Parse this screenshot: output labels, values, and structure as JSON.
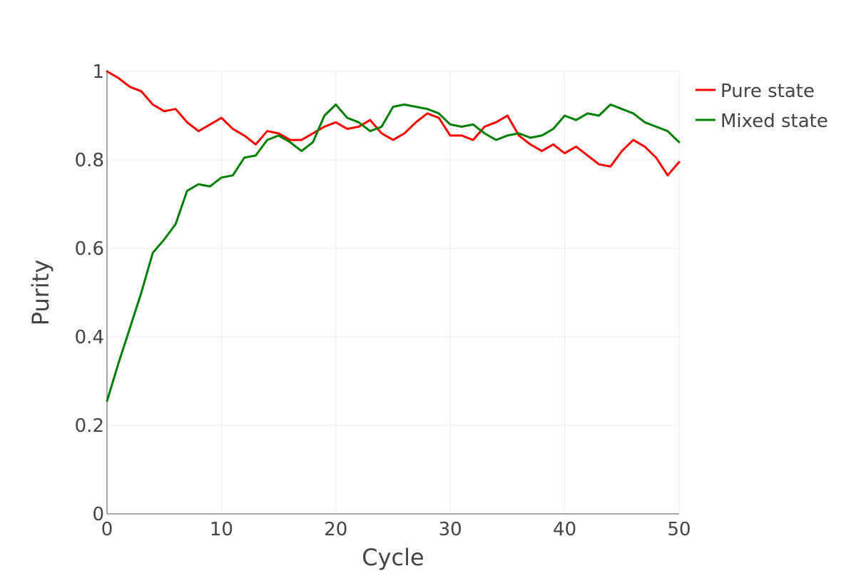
{
  "chart_data": {
    "type": "line",
    "xlabel": "Cycle",
    "ylabel": "Purity",
    "xlim": [
      0,
      50
    ],
    "ylim": [
      0,
      1
    ],
    "xticks": [
      0,
      10,
      20,
      30,
      40,
      50
    ],
    "yticks": [
      0,
      0.2,
      0.4,
      0.6,
      0.8,
      1
    ],
    "ytick_labels": [
      "0",
      "0.2",
      "0.4",
      "0.6",
      "0.8",
      "1"
    ],
    "xtick_labels": [
      "0",
      "10",
      "20",
      "30",
      "40",
      "50"
    ],
    "grid": true,
    "legend_position": "top-right",
    "series": [
      {
        "name": "Pure state",
        "color": "#ff0000",
        "points": [
          [
            0,
            1.0
          ],
          [
            1,
            0.985
          ],
          [
            2,
            0.965
          ],
          [
            3,
            0.955
          ],
          [
            4,
            0.925
          ],
          [
            5,
            0.91
          ],
          [
            6,
            0.915
          ],
          [
            7,
            0.885
          ],
          [
            8,
            0.865
          ],
          [
            9,
            0.88
          ],
          [
            10,
            0.895
          ],
          [
            11,
            0.87
          ],
          [
            12,
            0.855
          ],
          [
            13,
            0.835
          ],
          [
            14,
            0.865
          ],
          [
            15,
            0.86
          ],
          [
            16,
            0.845
          ],
          [
            17,
            0.845
          ],
          [
            18,
            0.86
          ],
          [
            19,
            0.875
          ],
          [
            20,
            0.885
          ],
          [
            21,
            0.87
          ],
          [
            22,
            0.875
          ],
          [
            23,
            0.89
          ],
          [
            24,
            0.86
          ],
          [
            25,
            0.845
          ],
          [
            26,
            0.86
          ],
          [
            27,
            0.885
          ],
          [
            28,
            0.905
          ],
          [
            29,
            0.895
          ],
          [
            30,
            0.855
          ],
          [
            31,
            0.855
          ],
          [
            32,
            0.845
          ],
          [
            33,
            0.875
          ],
          [
            34,
            0.885
          ],
          [
            35,
            0.9
          ],
          [
            36,
            0.855
          ],
          [
            37,
            0.835
          ],
          [
            38,
            0.82
          ],
          [
            39,
            0.835
          ],
          [
            40,
            0.815
          ],
          [
            41,
            0.83
          ],
          [
            42,
            0.81
          ],
          [
            43,
            0.79
          ],
          [
            44,
            0.785
          ],
          [
            45,
            0.82
          ],
          [
            46,
            0.845
          ],
          [
            47,
            0.83
          ],
          [
            48,
            0.805
          ],
          [
            49,
            0.765
          ],
          [
            50,
            0.795
          ]
        ]
      },
      {
        "name": "Mixed state",
        "color": "#008000",
        "points": [
          [
            0,
            0.255
          ],
          [
            1,
            0.34
          ],
          [
            2,
            0.42
          ],
          [
            3,
            0.5
          ],
          [
            4,
            0.59
          ],
          [
            5,
            0.62
          ],
          [
            6,
            0.655
          ],
          [
            7,
            0.73
          ],
          [
            8,
            0.745
          ],
          [
            9,
            0.74
          ],
          [
            10,
            0.76
          ],
          [
            11,
            0.765
          ],
          [
            12,
            0.805
          ],
          [
            13,
            0.81
          ],
          [
            14,
            0.845
          ],
          [
            15,
            0.855
          ],
          [
            16,
            0.84
          ],
          [
            17,
            0.82
          ],
          [
            18,
            0.84
          ],
          [
            19,
            0.9
          ],
          [
            20,
            0.925
          ],
          [
            21,
            0.895
          ],
          [
            22,
            0.885
          ],
          [
            23,
            0.865
          ],
          [
            24,
            0.875
          ],
          [
            25,
            0.92
          ],
          [
            26,
            0.925
          ],
          [
            27,
            0.92
          ],
          [
            28,
            0.915
          ],
          [
            29,
            0.905
          ],
          [
            30,
            0.88
          ],
          [
            31,
            0.875
          ],
          [
            32,
            0.88
          ],
          [
            33,
            0.86
          ],
          [
            34,
            0.845
          ],
          [
            35,
            0.855
          ],
          [
            36,
            0.86
          ],
          [
            37,
            0.85
          ],
          [
            38,
            0.855
          ],
          [
            39,
            0.87
          ],
          [
            40,
            0.9
          ],
          [
            41,
            0.89
          ],
          [
            42,
            0.905
          ],
          [
            43,
            0.9
          ],
          [
            44,
            0.925
          ],
          [
            45,
            0.915
          ],
          [
            46,
            0.905
          ],
          [
            47,
            0.885
          ],
          [
            48,
            0.875
          ],
          [
            49,
            0.865
          ],
          [
            50,
            0.84
          ]
        ]
      }
    ]
  }
}
